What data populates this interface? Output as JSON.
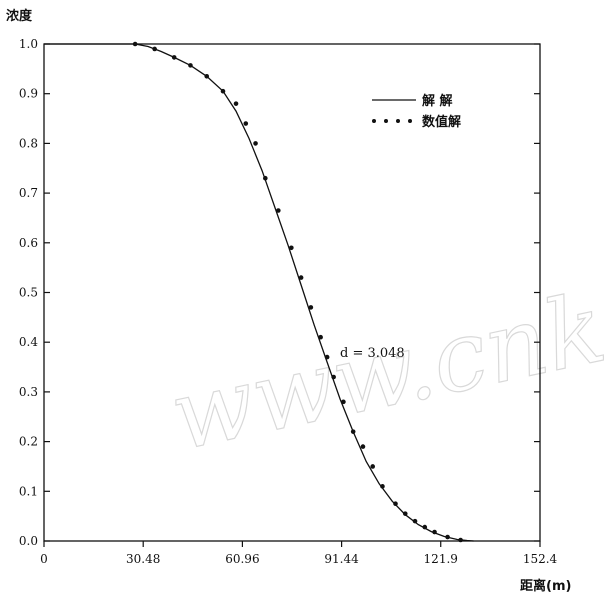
{
  "chart_data": {
    "type": "line",
    "ylabel": "浓度",
    "xlabel": "距离(m)",
    "x_ticks": [
      "0",
      "30.48",
      "60.96",
      "91.44",
      "121.9",
      "152.4"
    ],
    "y_ticks": [
      "0.0",
      "0.1",
      "0.2",
      "0.3",
      "0.4",
      "0.5",
      "0.6",
      "0.7",
      "0.8",
      "0.9",
      "1.0"
    ],
    "xlim": [
      0,
      152.4
    ],
    "ylim": [
      0,
      1.0
    ],
    "grid": false,
    "legend_position": "top-right",
    "annotation": "d = 3.048",
    "watermark": "www.cnki.net",
    "series": [
      {
        "name": "解 解",
        "style": "solid",
        "x": [
          0,
          24,
          28,
          32,
          36,
          40,
          45,
          50,
          55,
          59,
          63,
          67,
          71,
          75,
          79,
          83,
          87,
          91,
          95,
          99,
          103,
          107,
          111,
          115,
          119,
          123,
          127,
          130,
          132
        ],
        "y": [
          1.0,
          1.0,
          1.0,
          0.995,
          0.985,
          0.973,
          0.957,
          0.935,
          0.905,
          0.865,
          0.81,
          0.745,
          0.67,
          0.595,
          0.515,
          0.435,
          0.36,
          0.285,
          0.22,
          0.16,
          0.115,
          0.08,
          0.053,
          0.033,
          0.019,
          0.009,
          0.003,
          0.001,
          0.0
        ]
      },
      {
        "name": "数值解",
        "style": "dotted",
        "x": [
          28,
          34,
          40,
          45,
          50,
          55,
          59,
          62,
          65,
          68,
          72,
          76,
          79,
          82,
          85,
          87,
          89,
          92,
          95,
          98,
          101,
          104,
          108,
          111,
          114,
          117,
          120,
          124,
          128
        ],
        "y": [
          1.0,
          0.99,
          0.973,
          0.957,
          0.935,
          0.905,
          0.88,
          0.84,
          0.8,
          0.73,
          0.665,
          0.59,
          0.53,
          0.47,
          0.41,
          0.37,
          0.33,
          0.28,
          0.22,
          0.19,
          0.15,
          0.11,
          0.075,
          0.055,
          0.04,
          0.028,
          0.018,
          0.008,
          0.002
        ]
      }
    ]
  }
}
